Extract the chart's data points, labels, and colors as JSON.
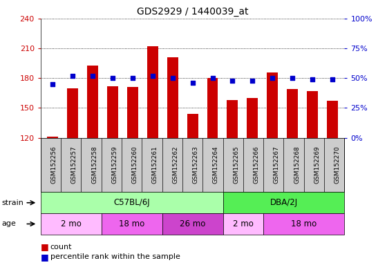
{
  "title": "GDS2929 / 1440039_at",
  "samples": [
    "GSM152256",
    "GSM152257",
    "GSM152258",
    "GSM152259",
    "GSM152260",
    "GSM152261",
    "GSM152262",
    "GSM152263",
    "GSM152264",
    "GSM152265",
    "GSM152266",
    "GSM152267",
    "GSM152268",
    "GSM152269",
    "GSM152270"
  ],
  "counts": [
    121,
    170,
    193,
    172,
    171,
    212,
    201,
    144,
    180,
    158,
    160,
    186,
    169,
    167,
    157
  ],
  "percentiles": [
    45,
    52,
    52,
    50,
    50,
    52,
    50,
    46,
    50,
    48,
    48,
    50,
    50,
    49,
    49
  ],
  "ylim_left": [
    120,
    240
  ],
  "ylim_right": [
    0,
    100
  ],
  "yticks_left": [
    120,
    150,
    180,
    210,
    240
  ],
  "yticks_right": [
    0,
    25,
    50,
    75,
    100
  ],
  "bar_color": "#cc0000",
  "dot_color": "#0000cc",
  "strain_groups": [
    {
      "label": "C57BL/6J",
      "start": 0,
      "end": 9,
      "color": "#aaffaa"
    },
    {
      "label": "DBA/2J",
      "start": 9,
      "end": 15,
      "color": "#55ee55"
    }
  ],
  "age_groups": [
    {
      "label": "2 mo",
      "start": 0,
      "end": 3,
      "color": "#ffbbff"
    },
    {
      "label": "18 mo",
      "start": 3,
      "end": 6,
      "color": "#ee66ee"
    },
    {
      "label": "26 mo",
      "start": 6,
      "end": 9,
      "color": "#cc44cc"
    },
    {
      "label": "2 mo",
      "start": 9,
      "end": 11,
      "color": "#ffbbff"
    },
    {
      "label": "18 mo",
      "start": 11,
      "end": 15,
      "color": "#ee66ee"
    }
  ],
  "strain_label": "strain",
  "age_label": "age",
  "legend_count_label": "count",
  "legend_pct_label": "percentile rank within the sample",
  "xtick_bg_color": "#cccccc",
  "spine_color": "#888888"
}
